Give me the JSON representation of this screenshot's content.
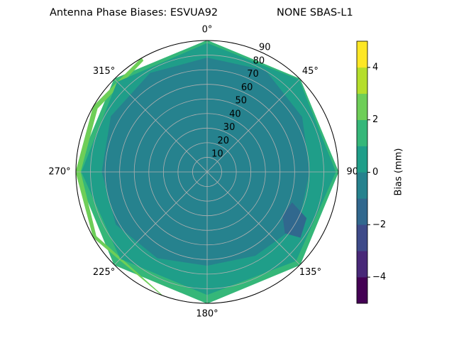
{
  "chart_data": {
    "type": "polar-contour",
    "title": "Antenna Phase Biases: ESVUA92",
    "subtitle": "NONE SBAS-L1",
    "rlim": [
      0,
      90
    ],
    "rticks": [
      10,
      20,
      30,
      40,
      50,
      60,
      70,
      80,
      90
    ],
    "theta_ticks": [
      {
        "value": 0,
        "label": "0°"
      },
      {
        "value": 45,
        "label": "45°"
      },
      {
        "value": 90,
        "label": "90°"
      },
      {
        "value": 135,
        "label": "135°"
      },
      {
        "value": 180,
        "label": "180°"
      },
      {
        "value": 225,
        "label": "225°"
      },
      {
        "value": 270,
        "label": "270°"
      },
      {
        "value": 315,
        "label": "315°"
      }
    ],
    "grid": true,
    "levels": [
      -5,
      -4,
      -3,
      -2,
      -1,
      0,
      1,
      2,
      3,
      4,
      5
    ],
    "colors": [
      "#440154",
      "#482878",
      "#3e4a89",
      "#31688e",
      "#26828e",
      "#1f9e89",
      "#35b779",
      "#6ece58",
      "#b5de2b",
      "#fde725"
    ],
    "clim": [
      -5,
      5
    ],
    "cticks": [
      {
        "value": -4,
        "label": "−4"
      },
      {
        "value": -2,
        "label": "−2"
      },
      0,
      2,
      4
    ],
    "colorbar_label": "Bias (mm)",
    "regions": [
      {
        "level": 1,
        "points": [
          [
            0,
            90
          ],
          [
            45,
            90
          ],
          [
            90,
            90
          ],
          [
            135,
            90
          ],
          [
            180,
            90
          ],
          [
            225,
            90
          ],
          [
            270,
            90
          ],
          [
            315,
            90
          ]
        ]
      },
      {
        "level": 2,
        "points": [
          [
            200,
            90
          ],
          [
            240,
            90
          ],
          [
            270,
            90
          ],
          [
            300,
            90
          ],
          [
            330,
            90
          ],
          [
            330,
            88
          ],
          [
            300,
            87
          ],
          [
            270,
            87
          ],
          [
            240,
            88
          ],
          [
            200,
            90
          ]
        ]
      },
      {
        "level": 0,
        "points": [
          [
            0,
            88
          ],
          [
            45,
            89
          ],
          [
            90,
            88
          ],
          [
            135,
            86
          ],
          [
            180,
            84
          ],
          [
            225,
            84
          ],
          [
            270,
            86
          ],
          [
            315,
            87
          ]
        ]
      },
      {
        "level": -1,
        "points": [
          [
            0,
            78
          ],
          [
            30,
            80
          ],
          [
            60,
            75
          ],
          [
            90,
            70
          ],
          [
            120,
            72
          ],
          [
            150,
            66
          ],
          [
            180,
            64
          ],
          [
            210,
            68
          ],
          [
            240,
            72
          ],
          [
            270,
            72
          ],
          [
            300,
            76
          ],
          [
            330,
            78
          ]
        ]
      },
      {
        "level": -2,
        "points": [
          [
            110,
            62
          ],
          [
            115,
            75
          ],
          [
            125,
            78
          ],
          [
            128,
            68
          ],
          [
            120,
            60
          ]
        ]
      }
    ]
  }
}
